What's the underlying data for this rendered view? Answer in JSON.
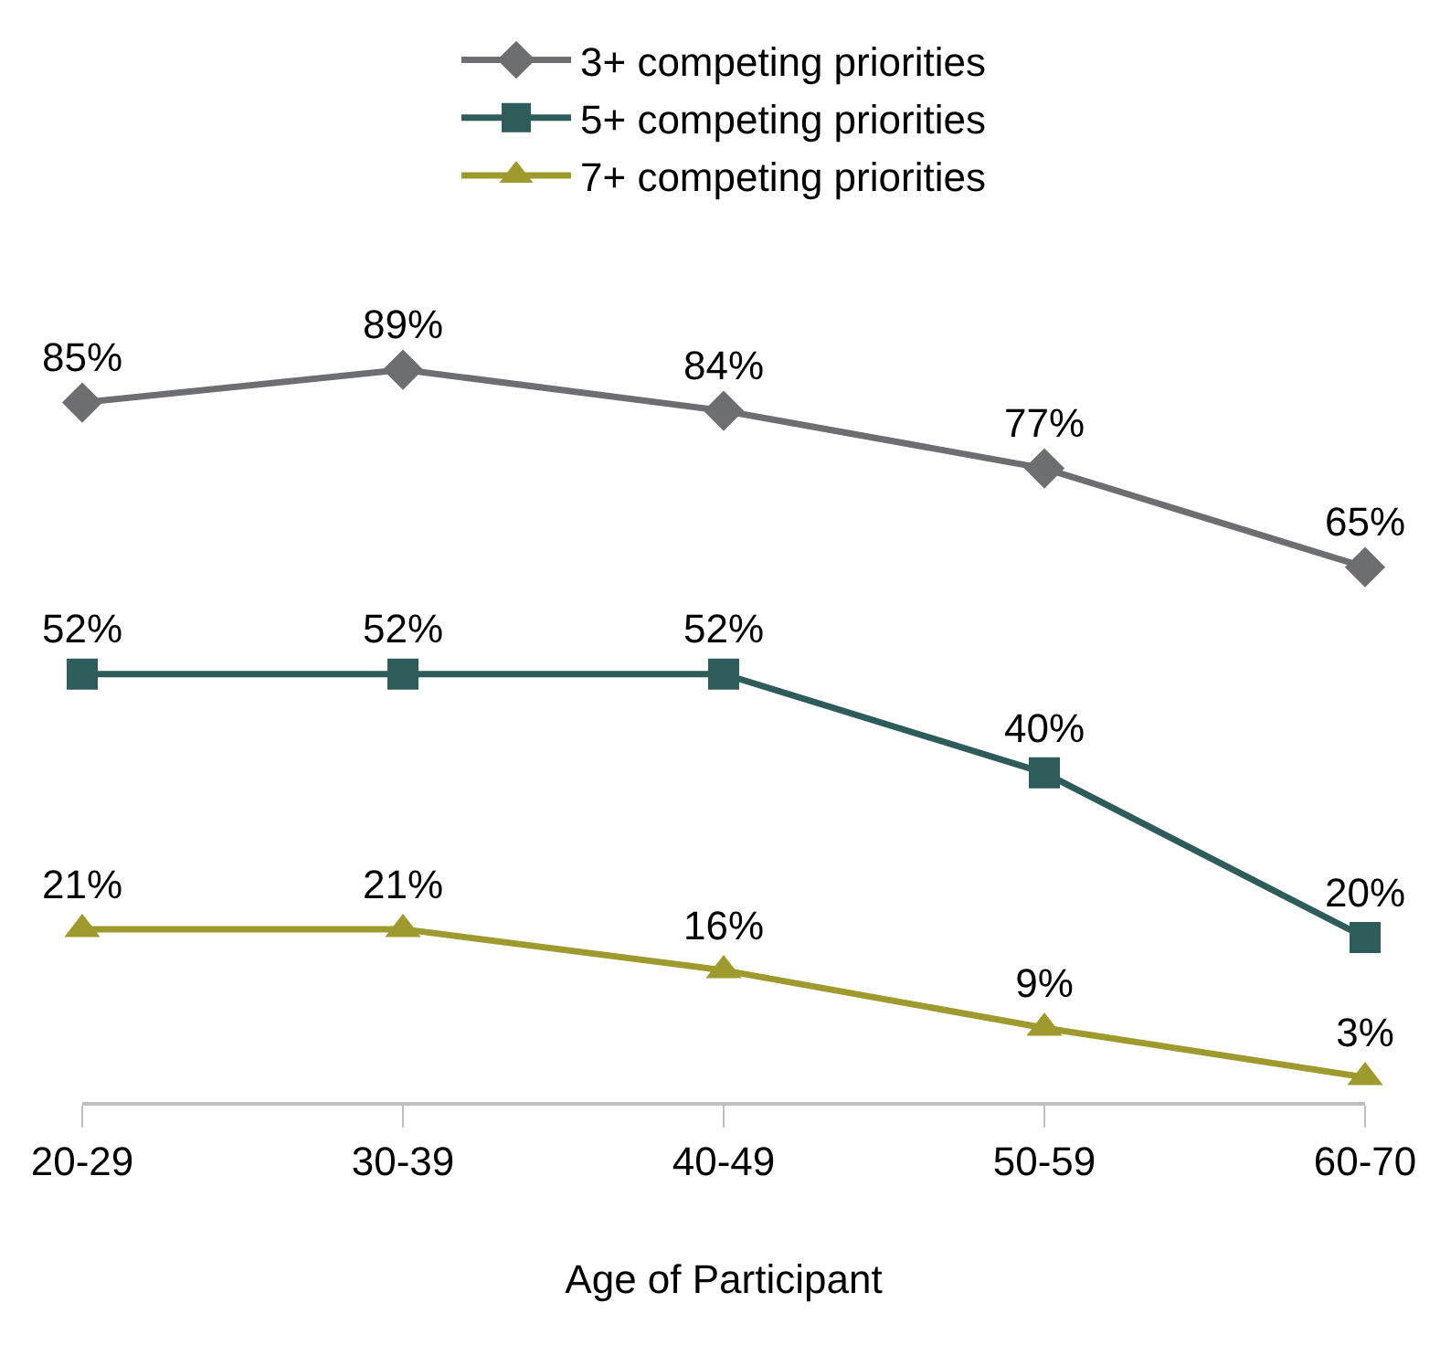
{
  "chart_data": {
    "type": "line",
    "xlabel": "Age of Participant",
    "categories": [
      "20-29",
      "30-39",
      "40-49",
      "50-59",
      "60-70"
    ],
    "series": [
      {
        "name": "3+ competing priorities",
        "color": "#6d6e71",
        "marker": "diamond",
        "values": [
          85,
          89,
          84,
          77,
          65
        ],
        "value_labels": [
          "85%",
          "89%",
          "84%",
          "77%",
          "65%"
        ]
      },
      {
        "name": "5+ competing priorities",
        "color": "#2e5c5a",
        "marker": "square",
        "values": [
          52,
          52,
          52,
          40,
          20
        ],
        "value_labels": [
          "52%",
          "52%",
          "52%",
          "40%",
          "20%"
        ]
      },
      {
        "name": "7+ competing priorities",
        "color": "#9e9a2e",
        "marker": "triangle",
        "values": [
          21,
          21,
          16,
          9,
          3
        ],
        "value_labels": [
          "21%",
          "21%",
          "16%",
          "9%",
          "3%"
        ]
      }
    ],
    "tick_labels": "x",
    "legend": "top",
    "line_style": "solid"
  }
}
